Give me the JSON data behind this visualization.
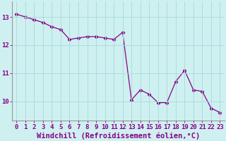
{
  "x": [
    0,
    1,
    2,
    3,
    4,
    5,
    6,
    7,
    8,
    9,
    10,
    11,
    12,
    13,
    14,
    15,
    16,
    17,
    18,
    19,
    20,
    21,
    22,
    23
  ],
  "y": [
    13.1,
    13.0,
    12.9,
    12.8,
    12.65,
    12.55,
    12.2,
    12.25,
    12.3,
    12.3,
    12.25,
    12.2,
    12.45,
    10.05,
    10.4,
    10.25,
    9.95,
    9.95,
    10.7,
    11.1,
    10.4,
    10.35,
    9.75,
    9.6
  ],
  "line_color": "#880088",
  "marker": "D",
  "marker_size": 2.5,
  "bg_color": "#cff0f0",
  "grid_color": "#aadddd",
  "xlabel": "Windchill (Refroidissement éolien,°C)",
  "xlabel_fontsize": 7.5,
  "tick_fontsize": 6.5,
  "yticks": [
    10,
    11,
    12,
    13
  ],
  "ylim": [
    9.3,
    13.55
  ],
  "xlim": [
    -0.5,
    23.5
  ]
}
